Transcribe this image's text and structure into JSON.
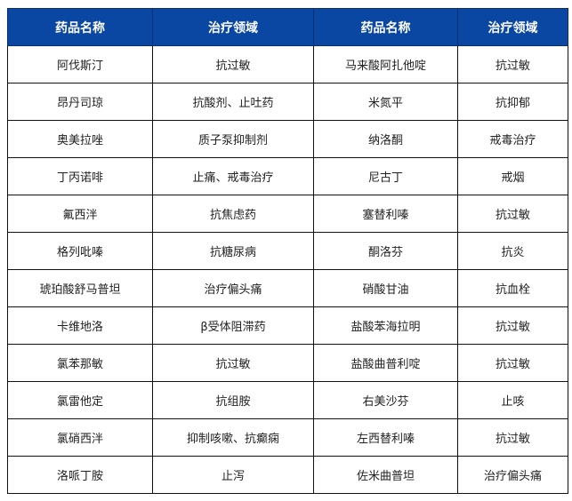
{
  "table": {
    "headers": [
      "药品名称",
      "治疗领域",
      "药品名称",
      "治疗领域"
    ],
    "rows": [
      [
        "阿伐斯汀",
        "抗过敏",
        "马来酸阿扎他啶",
        "抗过敏"
      ],
      [
        "昂丹司琼",
        "抗酸剂、止吐药",
        "米氮平",
        "抗抑郁"
      ],
      [
        "奥美拉唑",
        "质子泵抑制剂",
        "纳洛酮",
        "戒毒治疗"
      ],
      [
        "丁丙诺啡",
        "止痛、戒毒治疗",
        "尼古丁",
        "戒烟"
      ],
      [
        "氟西泮",
        "抗焦虑药",
        "塞替利嗪",
        "抗过敏"
      ],
      [
        "格列吡嗪",
        "抗糖尿病",
        "酮洛芬",
        "抗炎"
      ],
      [
        "琥珀酸舒马普坦",
        "治疗偏头痛",
        "硝酸甘油",
        "抗血栓"
      ],
      [
        "卡维地洛",
        "β受体阻滞药",
        "盐酸苯海拉明",
        "抗过敏"
      ],
      [
        "氯苯那敏",
        "抗过敏",
        "盐酸曲普利啶",
        "抗过敏"
      ],
      [
        "氯雷他定",
        "抗组胺",
        "右美沙芬",
        "止咳"
      ],
      [
        "氯硝西泮",
        "抑制咳嗽、抗癫痫",
        "左西替利嗪",
        "抗过敏"
      ],
      [
        "洛哌丁胺",
        "止泻",
        "佐米曲普坦",
        "治疗偏头痛"
      ]
    ]
  },
  "colors": {
    "header_bg": "#0a47a3"
  }
}
